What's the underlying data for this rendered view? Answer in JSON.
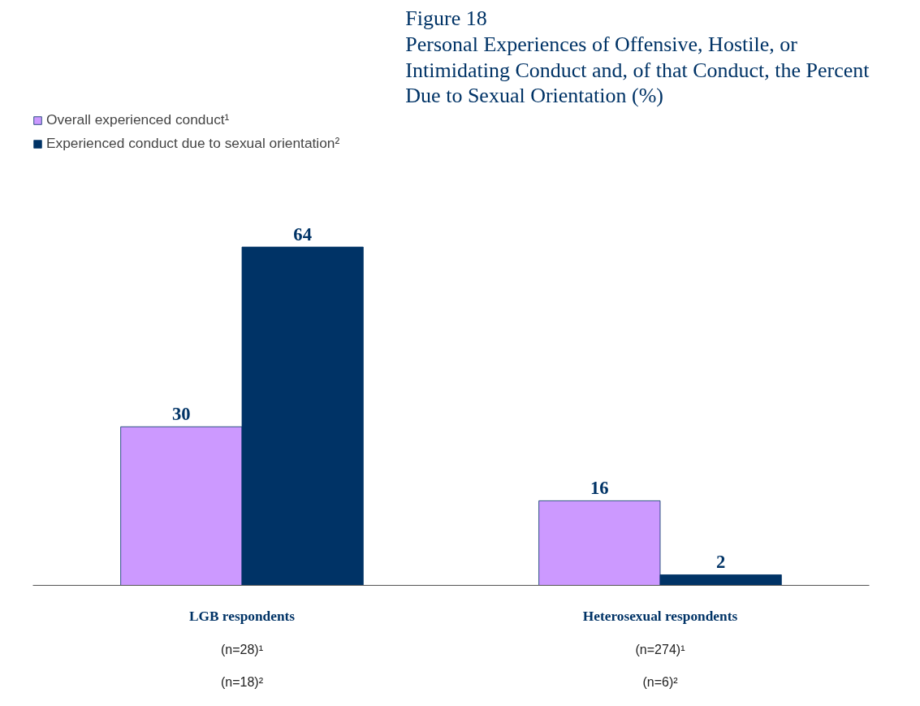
{
  "chart_data": {
    "type": "bar",
    "title": "Figure 18\nPersonal Experiences of Offensive, Hostile, or\nIntimidating Conduct and, of that Conduct, the Percent\nDue to Sexual Orientation (%)",
    "categories": [
      "LGB respondents",
      "Heterosexual respondents"
    ],
    "series": [
      {
        "name": "Overall experienced conduct¹",
        "color": "#cc99ff",
        "values": [
          30,
          16
        ]
      },
      {
        "name": "Experienced conduct due to sexual orientation²",
        "color": "#003366",
        "values": [
          64,
          2
        ]
      }
    ],
    "annotations": [
      "(n=28)¹",
      "(n=18)²",
      "(n=274)¹",
      "(n=6)²"
    ],
    "data_labels": true,
    "grid": false,
    "legend": "top left"
  }
}
